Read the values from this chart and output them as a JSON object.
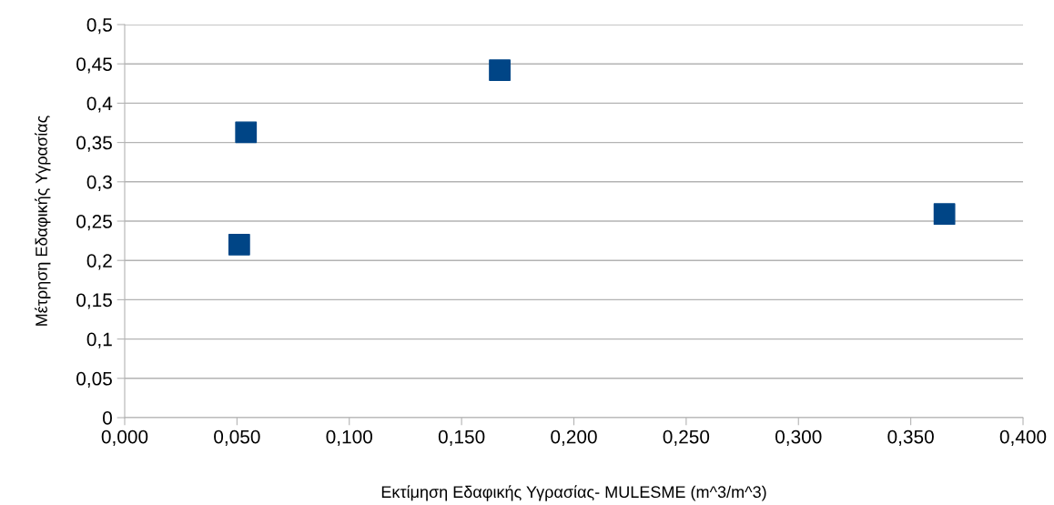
{
  "chart_data": {
    "type": "scatter",
    "xlabel": "Εκτίμηση Εδαφικής Υγρασίας- MULESME (m^3/m^3)",
    "ylabel": "Μέτρηση Εδαφικής Υγρασίας",
    "x": [
      0.051,
      0.054,
      0.167,
      0.365
    ],
    "series": [
      {
        "color": "#004586",
        "values": [
          0.22,
          0.363,
          0.442,
          0.259
        ]
      }
    ],
    "marker": "square",
    "grid": "y",
    "xlim": [
      0,
      0.4
    ],
    "ylim": [
      0,
      0.5
    ],
    "xticks": [
      {
        "value": 0,
        "label": "0,000"
      },
      {
        "value": 0.05,
        "label": "0,050"
      },
      {
        "value": 0.1,
        "label": "0,100"
      },
      {
        "value": 0.15,
        "label": "0,150"
      },
      {
        "value": 0.2,
        "label": "0,200"
      },
      {
        "value": 0.25,
        "label": "0,250"
      },
      {
        "value": 0.3,
        "label": "0,300"
      },
      {
        "value": 0.35,
        "label": "0,350"
      },
      {
        "value": 0.4,
        "label": "0,400"
      }
    ],
    "yticks": [
      0,
      {
        "value": 0.05,
        "label": "0,05"
      },
      {
        "value": 0.1,
        "label": "0,1"
      },
      {
        "value": 0.15,
        "label": "0,15"
      },
      {
        "value": 0.2,
        "label": "0,2"
      },
      {
        "value": 0.25,
        "label": "0,25"
      },
      {
        "value": 0.3,
        "label": "0,3"
      },
      {
        "value": 0.35,
        "label": "0,35"
      },
      {
        "value": 0.4,
        "label": "0,4"
      },
      {
        "value": 0.45,
        "label": "0,45"
      },
      {
        "value": 0.5,
        "label": "0,5"
      }
    ]
  }
}
